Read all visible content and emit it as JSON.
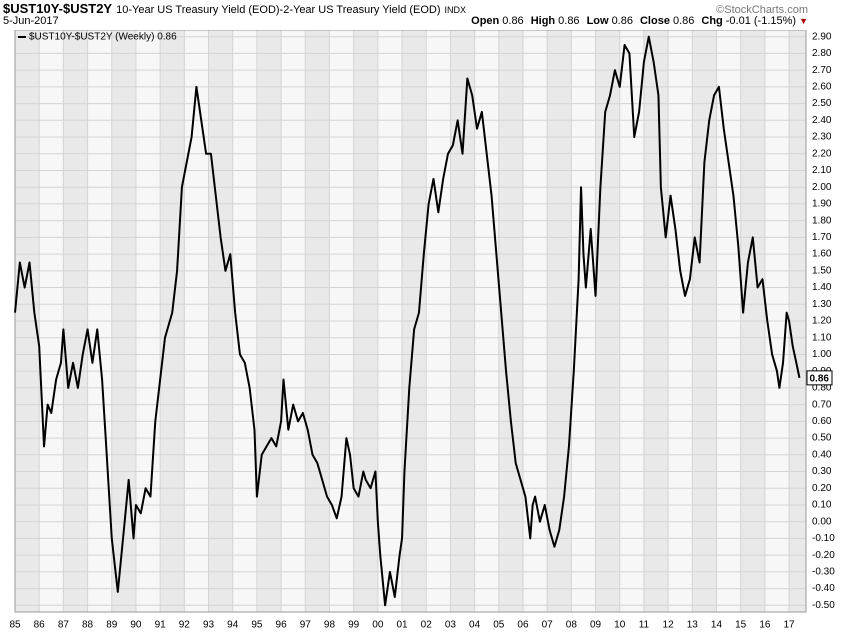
{
  "chart_data": {
    "type": "line",
    "title": "$UST10Y-$UST2Y",
    "subtitle": "10-Year US Treasury Yield (EOD)-2-Year US Treasury Yield (EOD)",
    "exchange": "INDX",
    "date": "5-Jun-2017",
    "watermark": "©StockCharts.com",
    "quote": [
      {
        "label": "Open",
        "value": 0.86
      },
      {
        "label": "High",
        "value": 0.86
      },
      {
        "label": "Low",
        "value": 0.86
      },
      {
        "label": "Close",
        "value": 0.86
      },
      {
        "label": "Chg",
        "value": "-0.01 (-1.15%)"
      }
    ],
    "last_value": 0.86,
    "grid": true,
    "x": [
      1985.0,
      1985.2,
      1985.4,
      1985.6,
      1985.8,
      1986.0,
      1986.1,
      1986.2,
      1986.35,
      1986.5,
      1986.7,
      1986.9,
      1987.0,
      1987.2,
      1987.4,
      1987.6,
      1987.8,
      1988.0,
      1988.2,
      1988.4,
      1988.6,
      1988.75,
      1989.0,
      1989.25,
      1989.5,
      1989.7,
      1989.9,
      1990.0,
      1990.2,
      1990.4,
      1990.6,
      1990.8,
      1991.0,
      1991.2,
      1991.5,
      1991.7,
      1991.9,
      1992.1,
      1992.3,
      1992.5,
      1992.7,
      1992.9,
      1993.1,
      1993.3,
      1993.5,
      1993.7,
      1993.9,
      1994.1,
      1994.3,
      1994.5,
      1994.7,
      1994.9,
      1995.0,
      1995.2,
      1995.4,
      1995.6,
      1995.8,
      1996.0,
      1996.1,
      1996.3,
      1996.5,
      1996.7,
      1996.9,
      1997.1,
      1997.3,
      1997.5,
      1997.7,
      1997.9,
      1998.1,
      1998.3,
      1998.5,
      1998.7,
      1998.85,
      1999.0,
      1999.2,
      1999.4,
      1999.5,
      1999.7,
      1999.9,
      2000.0,
      2000.1,
      2000.3,
      2000.5,
      2000.7,
      2000.9,
      2001.0,
      2001.1,
      2001.3,
      2001.5,
      2001.7,
      2001.9,
      2002.1,
      2002.3,
      2002.5,
      2002.7,
      2002.9,
      2003.1,
      2003.3,
      2003.5,
      2003.7,
      2003.9,
      2004.1,
      2004.3,
      2004.5,
      2004.7,
      2004.9,
      2005.1,
      2005.3,
      2005.5,
      2005.7,
      2005.9,
      2006.1,
      2006.3,
      2006.4,
      2006.5,
      2006.7,
      2006.9,
      2007.1,
      2007.3,
      2007.5,
      2007.7,
      2007.9,
      2008.1,
      2008.3,
      2008.4,
      2008.5,
      2008.6,
      2008.8,
      2009.0,
      2009.2,
      2009.4,
      2009.6,
      2009.8,
      2010.0,
      2010.2,
      2010.4,
      2010.6,
      2010.8,
      2011.0,
      2011.2,
      2011.4,
      2011.6,
      2011.7,
      2011.9,
      2012.1,
      2012.3,
      2012.5,
      2012.7,
      2012.9,
      2013.1,
      2013.3,
      2013.5,
      2013.7,
      2013.9,
      2014.1,
      2014.3,
      2014.5,
      2014.7,
      2014.9,
      2015.1,
      2015.3,
      2015.5,
      2015.7,
      2015.9,
      2016.1,
      2016.3,
      2016.5,
      2016.6,
      2016.75,
      2016.9,
      2017.0,
      2017.15,
      2017.3,
      2017.43
    ],
    "series": [
      {
        "name": "$UST10Y-$UST2Y (Weekly) 0.86",
        "color": "#000000",
        "values": [
          1.25,
          1.55,
          1.4,
          1.55,
          1.25,
          1.05,
          0.75,
          0.45,
          0.7,
          0.65,
          0.85,
          0.95,
          1.15,
          0.8,
          0.95,
          0.8,
          1.0,
          1.15,
          0.95,
          1.15,
          0.85,
          0.5,
          -0.1,
          -0.42,
          -0.05,
          0.25,
          -0.1,
          0.1,
          0.05,
          0.2,
          0.15,
          0.6,
          0.85,
          1.1,
          1.25,
          1.5,
          2.0,
          2.15,
          2.3,
          2.6,
          2.4,
          2.2,
          2.2,
          1.95,
          1.7,
          1.5,
          1.6,
          1.25,
          1.0,
          0.95,
          0.8,
          0.55,
          0.15,
          0.4,
          0.45,
          0.5,
          0.45,
          0.6,
          0.85,
          0.55,
          0.7,
          0.6,
          0.65,
          0.55,
          0.4,
          0.35,
          0.25,
          0.15,
          0.1,
          0.02,
          0.15,
          0.5,
          0.4,
          0.2,
          0.15,
          0.3,
          0.25,
          0.2,
          0.3,
          0.0,
          -0.2,
          -0.5,
          -0.3,
          -0.45,
          -0.2,
          -0.1,
          0.3,
          0.8,
          1.15,
          1.25,
          1.6,
          1.9,
          2.05,
          1.85,
          2.05,
          2.2,
          2.25,
          2.4,
          2.2,
          2.65,
          2.55,
          2.35,
          2.45,
          2.2,
          1.95,
          1.6,
          1.25,
          0.9,
          0.6,
          0.35,
          0.25,
          0.15,
          -0.1,
          0.1,
          0.15,
          0.0,
          0.1,
          -0.05,
          -0.15,
          -0.05,
          0.15,
          0.45,
          0.9,
          1.45,
          2.0,
          1.6,
          1.4,
          1.75,
          1.35,
          2.0,
          2.45,
          2.55,
          2.7,
          2.6,
          2.85,
          2.8,
          2.3,
          2.45,
          2.75,
          2.9,
          2.75,
          2.55,
          2.0,
          1.7,
          1.95,
          1.75,
          1.5,
          1.35,
          1.45,
          1.7,
          1.55,
          2.15,
          2.4,
          2.55,
          2.6,
          2.35,
          2.15,
          1.95,
          1.65,
          1.25,
          1.55,
          1.7,
          1.4,
          1.45,
          1.2,
          1.0,
          0.9,
          0.8,
          0.95,
          1.25,
          1.2,
          1.05,
          0.95,
          0.86
        ]
      }
    ],
    "xlim": [
      1985,
      2017.7
    ],
    "xticks": [
      {
        "value": 1985,
        "label": "85"
      },
      {
        "value": 1986,
        "label": "86"
      },
      {
        "value": 1987,
        "label": "87"
      },
      {
        "value": 1988,
        "label": "88"
      },
      {
        "value": 1989,
        "label": "89"
      },
      {
        "value": 1990,
        "label": "90"
      },
      {
        "value": 1991,
        "label": "91"
      },
      {
        "value": 1992,
        "label": "92"
      },
      {
        "value": 1993,
        "label": "93"
      },
      {
        "value": 1994,
        "label": "94"
      },
      {
        "value": 1995,
        "label": "95"
      },
      {
        "value": 1996,
        "label": "96"
      },
      {
        "value": 1997,
        "label": "97"
      },
      {
        "value": 1998,
        "label": "98"
      },
      {
        "value": 1999,
        "label": "99"
      },
      {
        "value": 2000,
        "label": "00"
      },
      {
        "value": 2001,
        "label": "01"
      },
      {
        "value": 2002,
        "label": "02"
      },
      {
        "value": 2003,
        "label": "03"
      },
      {
        "value": 2004,
        "label": "04"
      },
      {
        "value": 2005,
        "label": "05"
      },
      {
        "value": 2006,
        "label": "06"
      },
      {
        "value": 2007,
        "label": "07"
      },
      {
        "value": 2008,
        "label": "08"
      },
      {
        "value": 2009,
        "label": "09"
      },
      {
        "value": 2010,
        "label": "10"
      },
      {
        "value": 2011,
        "label": "11"
      },
      {
        "value": 2012,
        "label": "12"
      },
      {
        "value": 2013,
        "label": "13"
      },
      {
        "value": 2014,
        "label": "14"
      },
      {
        "value": 2015,
        "label": "15"
      },
      {
        "value": 2016,
        "label": "16"
      },
      {
        "value": 2017,
        "label": "17"
      }
    ],
    "ylim": [
      -0.54,
      2.94
    ],
    "yticks": [
      {
        "value": -0.5,
        "label": "-0.50"
      },
      {
        "value": -0.4,
        "label": "-0.40"
      },
      {
        "value": -0.3,
        "label": "-0.30"
      },
      {
        "value": -0.2,
        "label": "-0.20"
      },
      {
        "value": -0.1,
        "label": "-0.10"
      },
      {
        "value": 0,
        "label": "0.00"
      },
      {
        "value": 0.1,
        "label": "0.10"
      },
      {
        "value": 0.2,
        "label": "0.20"
      },
      {
        "value": 0.3,
        "label": "0.30"
      },
      {
        "value": 0.4,
        "label": "0.40"
      },
      {
        "value": 0.5,
        "label": "0.50"
      },
      {
        "value": 0.6,
        "label": "0.60"
      },
      {
        "value": 0.7,
        "label": "0.70"
      },
      {
        "value": 0.8,
        "label": "0.80"
      },
      {
        "value": 0.9,
        "label": "0.90"
      },
      {
        "value": 1,
        "label": "1.00"
      },
      {
        "value": 1.1,
        "label": "1.10"
      },
      {
        "value": 1.2,
        "label": "1.20"
      },
      {
        "value": 1.3,
        "label": "1.30"
      },
      {
        "value": 1.4,
        "label": "1.40"
      },
      {
        "value": 1.5,
        "label": "1.50"
      },
      {
        "value": 1.6,
        "label": "1.60"
      },
      {
        "value": 1.7,
        "label": "1.70"
      },
      {
        "value": 1.8,
        "label": "1.80"
      },
      {
        "value": 1.9,
        "label": "1.90"
      },
      {
        "value": 2,
        "label": "2.00"
      },
      {
        "value": 2.1,
        "label": "2.10"
      },
      {
        "value": 2.2,
        "label": "2.20"
      },
      {
        "value": 2.3,
        "label": "2.30"
      },
      {
        "value": 2.4,
        "label": "2.40"
      },
      {
        "value": 2.5,
        "label": "2.50"
      },
      {
        "value": 2.6,
        "label": "2.60"
      },
      {
        "value": 2.7,
        "label": "2.70"
      },
      {
        "value": 2.8,
        "label": "2.80"
      },
      {
        "value": 2.9,
        "label": "2.90"
      }
    ]
  }
}
